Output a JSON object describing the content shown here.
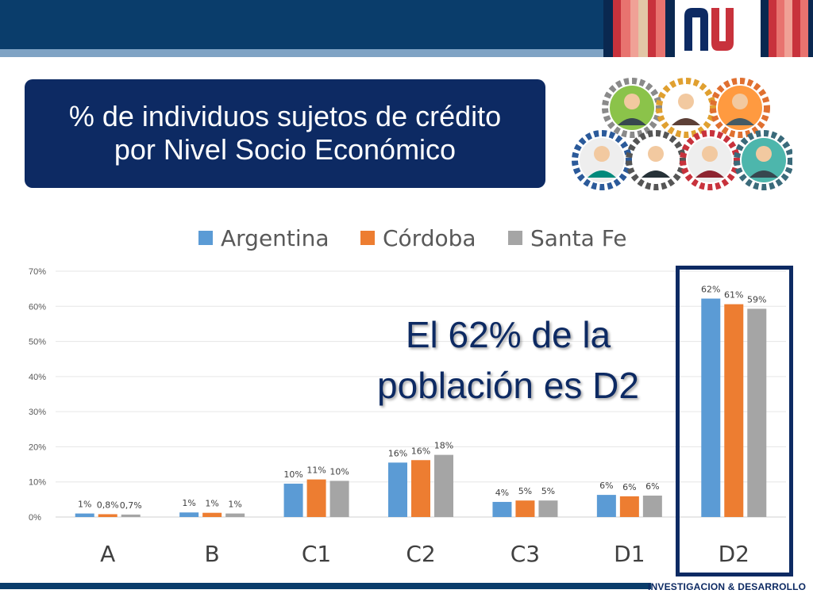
{
  "header": {
    "title_line1": "% de individuos sujetos de crédito",
    "title_line2": "por Nivel Socio Económico"
  },
  "annotation": {
    "line1": "El 62% de la",
    "line2": "población es D2"
  },
  "footer": {
    "label": "INVESTIGACION & DESARROLLO"
  },
  "colors": {
    "brand_navy": "#0d2a63",
    "argentina": "#5b9bd5",
    "cordoba": "#ed7d31",
    "santa_fe": "#a5a5a5"
  },
  "chart_data": {
    "type": "bar",
    "categories": [
      "A",
      "B",
      "C1",
      "C2",
      "C3",
      "D1",
      "D2"
    ],
    "series": [
      {
        "name": "Argentina",
        "values": [
          1,
          1.3,
          9.5,
          15.5,
          4.3,
          6.3,
          62.2
        ],
        "labels": [
          "1%",
          "1%",
          "10%",
          "16%",
          "4%",
          "6%",
          "62%"
        ]
      },
      {
        "name": "Córdoba",
        "values": [
          0.8,
          1.2,
          10.7,
          16.2,
          4.7,
          5.9,
          60.6
        ],
        "labels": [
          "0,8%",
          "1%",
          "11%",
          "16%",
          "5%",
          "6%",
          "61%"
        ]
      },
      {
        "name": "Santa Fe",
        "values": [
          0.7,
          1,
          10.3,
          17.7,
          4.7,
          6.1,
          59.3
        ],
        "labels": [
          "0,7%",
          "1%",
          "10%",
          "18%",
          "5%",
          "6%",
          "59%"
        ]
      }
    ],
    "y_ticks": [
      "0%",
      "10%",
      "20%",
      "30%",
      "40%",
      "50%",
      "60%",
      "70%"
    ],
    "ylim": [
      0,
      70
    ],
    "grid": true,
    "legend": "top-center",
    "highlight_category": "D2"
  }
}
